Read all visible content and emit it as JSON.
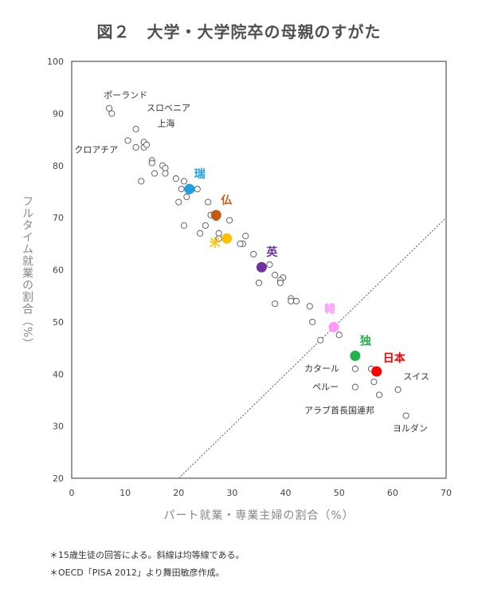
{
  "title": "図２　大学・大学院卒の母親のすがた",
  "notes": [
    "＊15歳生徒の回答による。斜線は均等線である。",
    "＊OECD「PISA 2012」より舞田敏彦作成。"
  ],
  "chart_data": {
    "type": "scatter",
    "xlabel": "パート就業・専業主婦の割合（%）",
    "ylabel": "フルタイム就業の割合（%）",
    "xlim": [
      0,
      70
    ],
    "ylim": [
      20,
      100
    ],
    "x_ticks": [
      "0",
      "10",
      "20",
      "30",
      "40",
      "50",
      "60",
      "70"
    ],
    "y_ticks": [
      "20",
      "30",
      "40",
      "50",
      "60",
      "70",
      "80",
      "90",
      "100"
    ],
    "grid": false,
    "reference_line": "equality line (y = x)",
    "others": [
      [
        7,
        91
      ],
      [
        7.5,
        90
      ],
      [
        12,
        87
      ],
      [
        13.5,
        84.5
      ],
      [
        13.5,
        83.5
      ],
      [
        14,
        84
      ],
      [
        10.5,
        84.8
      ],
      [
        12,
        83.5
      ],
      [
        15,
        81
      ],
      [
        15,
        80.5
      ],
      [
        17,
        80
      ],
      [
        17.5,
        79.5
      ],
      [
        17.5,
        78.5
      ],
      [
        15.5,
        78.5
      ],
      [
        13,
        77
      ],
      [
        19.5,
        77.5
      ],
      [
        21,
        77
      ],
      [
        20.5,
        75.5
      ],
      [
        22.5,
        75.5
      ],
      [
        23.5,
        75.5
      ],
      [
        21.5,
        74
      ],
      [
        20,
        73
      ],
      [
        25.5,
        73
      ],
      [
        26,
        70.5
      ],
      [
        27,
        70
      ],
      [
        29.5,
        69.5
      ],
      [
        25,
        68.5
      ],
      [
        21,
        68.5
      ],
      [
        24,
        67
      ],
      [
        27.5,
        67
      ],
      [
        27.5,
        66
      ],
      [
        32.5,
        66.5
      ],
      [
        32,
        65
      ],
      [
        31.5,
        65
      ],
      [
        34,
        63
      ],
      [
        37,
        61
      ],
      [
        38,
        59
      ],
      [
        39.5,
        58.5
      ],
      [
        39,
        58
      ],
      [
        39,
        57.5
      ],
      [
        35,
        57.5
      ],
      [
        41,
        54.5
      ],
      [
        41,
        54
      ],
      [
        42,
        54
      ],
      [
        44.5,
        53
      ],
      [
        38,
        53.5
      ],
      [
        45,
        50
      ],
      [
        46.5,
        46.5
      ],
      [
        50,
        47.5
      ],
      [
        53,
        41
      ],
      [
        56,
        41
      ],
      [
        53,
        37.5
      ],
      [
        56.5,
        38.5
      ],
      [
        61,
        37
      ],
      [
        57.5,
        36
      ],
      [
        62.5,
        32
      ]
    ],
    "highlighted": [
      {
        "label": "瑞",
        "x": 22,
        "y": 75.5,
        "color": "#1BA1E2"
      },
      {
        "label": "仏",
        "x": 27,
        "y": 70.5,
        "color": "#C55A11"
      },
      {
        "label": "米",
        "x": 29,
        "y": 66,
        "color": "#FFC000"
      },
      {
        "label": "英",
        "x": 35.5,
        "y": 60.5,
        "color": "#7030A0"
      },
      {
        "label": "韓",
        "x": 49,
        "y": 49,
        "color": "#FF99FF"
      },
      {
        "label": "独",
        "x": 53,
        "y": 43.5,
        "color": "#22B14C"
      },
      {
        "label": "日本",
        "x": 57,
        "y": 40.5,
        "color": "#FF0000"
      }
    ],
    "annotations": [
      {
        "text": "ポーランド",
        "x": 6,
        "y": 93
      },
      {
        "text": "スロベニア",
        "x": 14,
        "y": 90.5
      },
      {
        "text": "上海",
        "x": 16,
        "y": 87.5
      },
      {
        "text": "クロアチア",
        "x": 0.5,
        "y": 82.5
      },
      {
        "text": "カタール",
        "x": 43.5,
        "y": 40.5
      },
      {
        "text": "ペルー",
        "x": 45,
        "y": 37
      },
      {
        "text": "アラブ首長国連邦",
        "x": 43.5,
        "y": 32.5
      },
      {
        "text": "スイス",
        "x": 62,
        "y": 39
      },
      {
        "text": "ヨルダン",
        "x": 60,
        "y": 29
      }
    ]
  }
}
